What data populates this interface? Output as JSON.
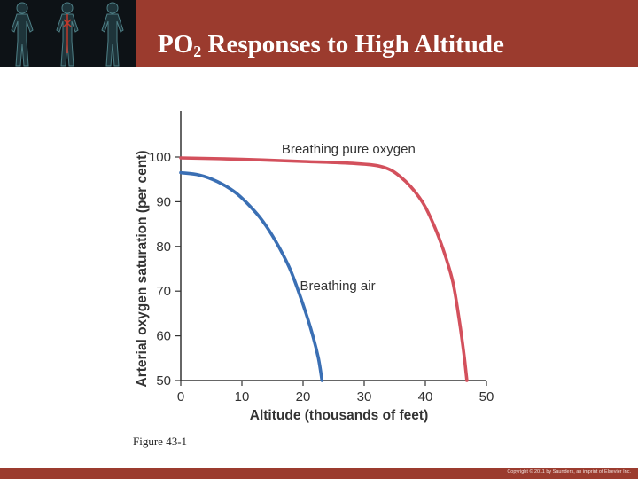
{
  "slide": {
    "title_main": "PO",
    "title_sub": "2",
    "title_rest": " Responses to High Altitude",
    "caption": "Figure 43-1",
    "copyright": "Copyright © 2011 by Saunders, an imprint of Elsevier Inc."
  },
  "colors": {
    "header": "#9b3b2e",
    "oxygen_curve": "#d3505c",
    "air_curve": "#3a6fb4"
  },
  "chart_data": {
    "type": "line",
    "xlabel": "Altitude (thousands of feet)",
    "ylabel": "Arterial oxygen saturation (per cent)",
    "xlim": [
      0,
      50
    ],
    "ylim": [
      50,
      100
    ],
    "xticks": [
      0,
      10,
      20,
      30,
      40,
      50
    ],
    "yticks": [
      50,
      60,
      70,
      80,
      90,
      100
    ],
    "grid": false,
    "series": [
      {
        "name": "Breathing pure oxygen",
        "color": "#d3505c",
        "x": [
          0,
          10,
          20,
          28,
          33,
          36,
          39,
          41,
          43,
          44.5,
          45.5,
          46.3,
          46.8
        ],
        "y": [
          99.8,
          99.5,
          99.0,
          98.6,
          97.8,
          95.5,
          91.0,
          86.0,
          79.0,
          72.0,
          64.0,
          56.0,
          50.0
        ]
      },
      {
        "name": "Breathing air",
        "color": "#3a6fb4",
        "x": [
          0,
          3,
          6,
          9,
          12,
          14,
          16,
          18,
          20,
          21.5,
          22.5,
          23.1
        ],
        "y": [
          96.5,
          96.0,
          94.5,
          92.0,
          88.0,
          84.5,
          80.0,
          74.5,
          67.0,
          60.5,
          55.0,
          50.0
        ]
      }
    ]
  }
}
